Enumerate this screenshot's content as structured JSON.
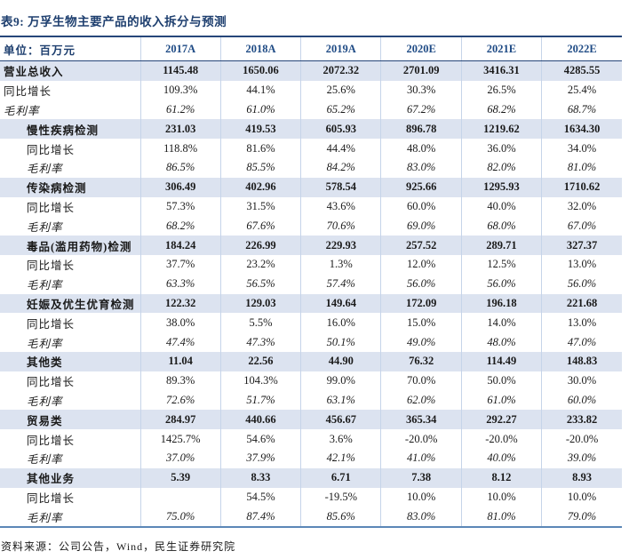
{
  "title": "表9: 万孚生物主要产品的收入拆分与预测",
  "table": {
    "unit_label": "单位：百万元",
    "columns": [
      "2017A",
      "2018A",
      "2019A",
      "2020E",
      "2021E",
      "2022E"
    ],
    "rows": [
      {
        "label": "营业总收入",
        "style": "section",
        "indent": 0,
        "values": [
          "1145.48",
          "1650.06",
          "2072.32",
          "2701.09",
          "3416.31",
          "4285.55"
        ]
      },
      {
        "label": "同比增长",
        "style": "growth",
        "indent": 0,
        "values": [
          "109.3%",
          "44.1%",
          "25.6%",
          "30.3%",
          "26.5%",
          "25.4%"
        ]
      },
      {
        "label": "毛利率",
        "style": "margin",
        "indent": 0,
        "values": [
          "61.2%",
          "61.0%",
          "65.2%",
          "67.2%",
          "68.2%",
          "68.7%"
        ]
      },
      {
        "label": "慢性疾病检测",
        "style": "section",
        "indent": 1,
        "values": [
          "231.03",
          "419.53",
          "605.93",
          "896.78",
          "1219.62",
          "1634.30"
        ]
      },
      {
        "label": "同比增长",
        "style": "growth",
        "indent": 1,
        "values": [
          "118.8%",
          "81.6%",
          "44.4%",
          "48.0%",
          "36.0%",
          "34.0%"
        ]
      },
      {
        "label": "毛利率",
        "style": "margin",
        "indent": 1,
        "values": [
          "86.5%",
          "85.5%",
          "84.2%",
          "83.0%",
          "82.0%",
          "81.0%"
        ]
      },
      {
        "label": "传染病检测",
        "style": "section",
        "indent": 1,
        "values": [
          "306.49",
          "402.96",
          "578.54",
          "925.66",
          "1295.93",
          "1710.62"
        ]
      },
      {
        "label": "同比增长",
        "style": "growth",
        "indent": 1,
        "values": [
          "57.3%",
          "31.5%",
          "43.6%",
          "60.0%",
          "40.0%",
          "32.0%"
        ]
      },
      {
        "label": "毛利率",
        "style": "margin",
        "indent": 1,
        "values": [
          "68.2%",
          "67.6%",
          "70.6%",
          "69.0%",
          "68.0%",
          "67.0%"
        ]
      },
      {
        "label": "毒品(滥用药物)检测",
        "style": "section",
        "indent": 1,
        "values": [
          "184.24",
          "226.99",
          "229.93",
          "257.52",
          "289.71",
          "327.37"
        ]
      },
      {
        "label": "同比增长",
        "style": "growth",
        "indent": 1,
        "values": [
          "37.7%",
          "23.2%",
          "1.3%",
          "12.0%",
          "12.5%",
          "13.0%"
        ]
      },
      {
        "label": "毛利率",
        "style": "margin",
        "indent": 1,
        "values": [
          "63.3%",
          "56.5%",
          "57.4%",
          "56.0%",
          "56.0%",
          "56.0%"
        ]
      },
      {
        "label": "妊娠及优生优育检测",
        "style": "section",
        "indent": 1,
        "values": [
          "122.32",
          "129.03",
          "149.64",
          "172.09",
          "196.18",
          "221.68"
        ]
      },
      {
        "label": "同比增长",
        "style": "growth",
        "indent": 1,
        "values": [
          "38.0%",
          "5.5%",
          "16.0%",
          "15.0%",
          "14.0%",
          "13.0%"
        ]
      },
      {
        "label": "毛利率",
        "style": "margin",
        "indent": 1,
        "values": [
          "47.4%",
          "47.3%",
          "50.1%",
          "49.0%",
          "48.0%",
          "47.0%"
        ]
      },
      {
        "label": "其他类",
        "style": "section",
        "indent": 1,
        "values": [
          "11.04",
          "22.56",
          "44.90",
          "76.32",
          "114.49",
          "148.83"
        ]
      },
      {
        "label": "同比增长",
        "style": "growth",
        "indent": 1,
        "values": [
          "89.3%",
          "104.3%",
          "99.0%",
          "70.0%",
          "50.0%",
          "30.0%"
        ]
      },
      {
        "label": "毛利率",
        "style": "margin",
        "indent": 1,
        "values": [
          "72.6%",
          "51.7%",
          "63.1%",
          "62.0%",
          "61.0%",
          "60.0%"
        ]
      },
      {
        "label": "贸易类",
        "style": "section",
        "indent": 1,
        "values": [
          "284.97",
          "440.66",
          "456.67",
          "365.34",
          "292.27",
          "233.82"
        ]
      },
      {
        "label": "同比增长",
        "style": "growth",
        "indent": 1,
        "values": [
          "1425.7%",
          "54.6%",
          "3.6%",
          "-20.0%",
          "-20.0%",
          "-20.0%"
        ]
      },
      {
        "label": "毛利率",
        "style": "margin",
        "indent": 1,
        "values": [
          "37.0%",
          "37.9%",
          "42.1%",
          "41.0%",
          "40.0%",
          "39.0%"
        ]
      },
      {
        "label": "其他业务",
        "style": "section",
        "indent": 1,
        "values": [
          "5.39",
          "8.33",
          "6.71",
          "7.38",
          "8.12",
          "8.93"
        ]
      },
      {
        "label": "同比增长",
        "style": "growth",
        "indent": 1,
        "values": [
          "",
          "54.5%",
          "-19.5%",
          "10.0%",
          "10.0%",
          "10.0%"
        ]
      },
      {
        "label": "毛利率",
        "style": "margin",
        "indent": 1,
        "values": [
          "75.0%",
          "87.4%",
          "85.6%",
          "83.0%",
          "81.0%",
          "79.0%"
        ]
      }
    ]
  },
  "footer": {
    "source_label": "资料来源：公司公告，Wind，民生证券研究院"
  },
  "colors": {
    "title_navy": "#1e3f6f",
    "header_navy": "#1f4b85",
    "row_highlight": "#dce3f0",
    "border_dark": "#27477a",
    "border_bottom_blue": "#5b87b7",
    "grid_line": "#c6d4e9",
    "body_text": "#1a1a1a"
  }
}
